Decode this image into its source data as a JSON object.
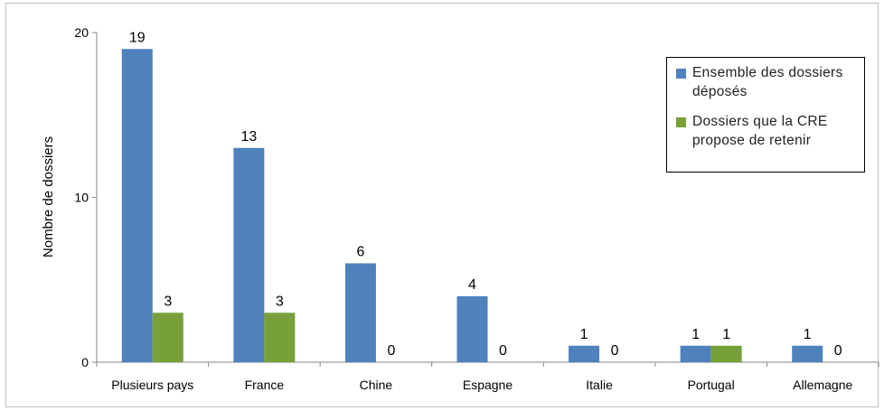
{
  "chart_data": {
    "type": "bar",
    "categories": [
      "Plusieurs pays",
      "France",
      "Chine",
      "Espagne",
      "Italie",
      "Portugal",
      "Allemagne"
    ],
    "series": [
      {
        "name": "Ensemble des dossiers déposés",
        "values": [
          19,
          13,
          6,
          4,
          1,
          1,
          1
        ],
        "color": "#4f81bd"
      },
      {
        "name": "Dossiers que la CRE propose de retenir",
        "values": [
          3,
          3,
          0,
          0,
          0,
          1,
          0
        ],
        "color": "#77a03b"
      }
    ],
    "ylabel": "Nombre de dossiers",
    "ylim": [
      0,
      20
    ],
    "yticks": [
      0,
      10,
      20
    ],
    "grid": false,
    "legend_position": "top-right"
  }
}
